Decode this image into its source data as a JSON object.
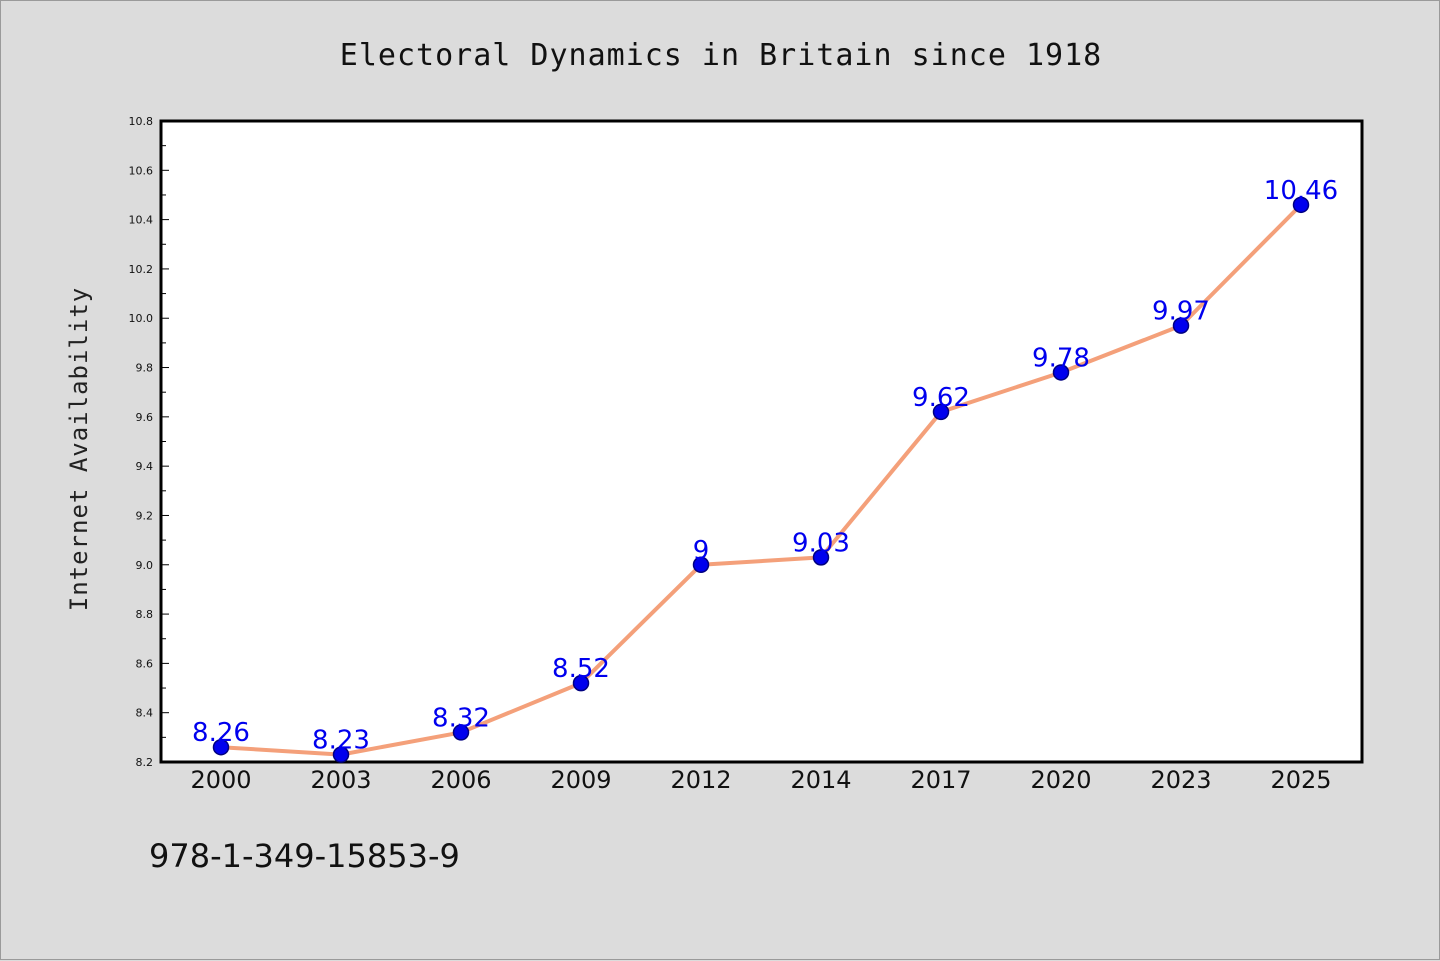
{
  "colors": {
    "background": "#dcdcdc",
    "plot_background": "#ffffff",
    "line": "#f4a07a",
    "marker_fill": "#0000ee",
    "marker_edge": "#000080",
    "data_label": "#0000ee"
  },
  "footer_text": "978-1-349-15853-9",
  "chart_data": {
    "type": "line",
    "title": "Electoral Dynamics in Britain since 1918",
    "xlabel": "",
    "ylabel": "Internet Availability",
    "categories": [
      "2000",
      "2003",
      "2006",
      "2009",
      "2012",
      "2014",
      "2017",
      "2020",
      "2023",
      "2025"
    ],
    "values": [
      8.26,
      8.23,
      8.32,
      8.52,
      9.0,
      9.03,
      9.62,
      9.78,
      9.97,
      10.46
    ],
    "data_labels": [
      "8.26",
      "8.23",
      "8.32",
      "8.52",
      "9",
      "9.03",
      "9.62",
      "9.78",
      "9.97",
      "10.46"
    ],
    "ylim": [
      8.2,
      10.8
    ],
    "yticks": [
      "8.2",
      "8.4",
      "8.6",
      "8.8",
      "9.0",
      "9.2",
      "9.4",
      "9.6",
      "9.8",
      "10.0",
      "10.2",
      "10.4",
      "10.6",
      "10.8"
    ],
    "grid": false,
    "legend": "none"
  }
}
